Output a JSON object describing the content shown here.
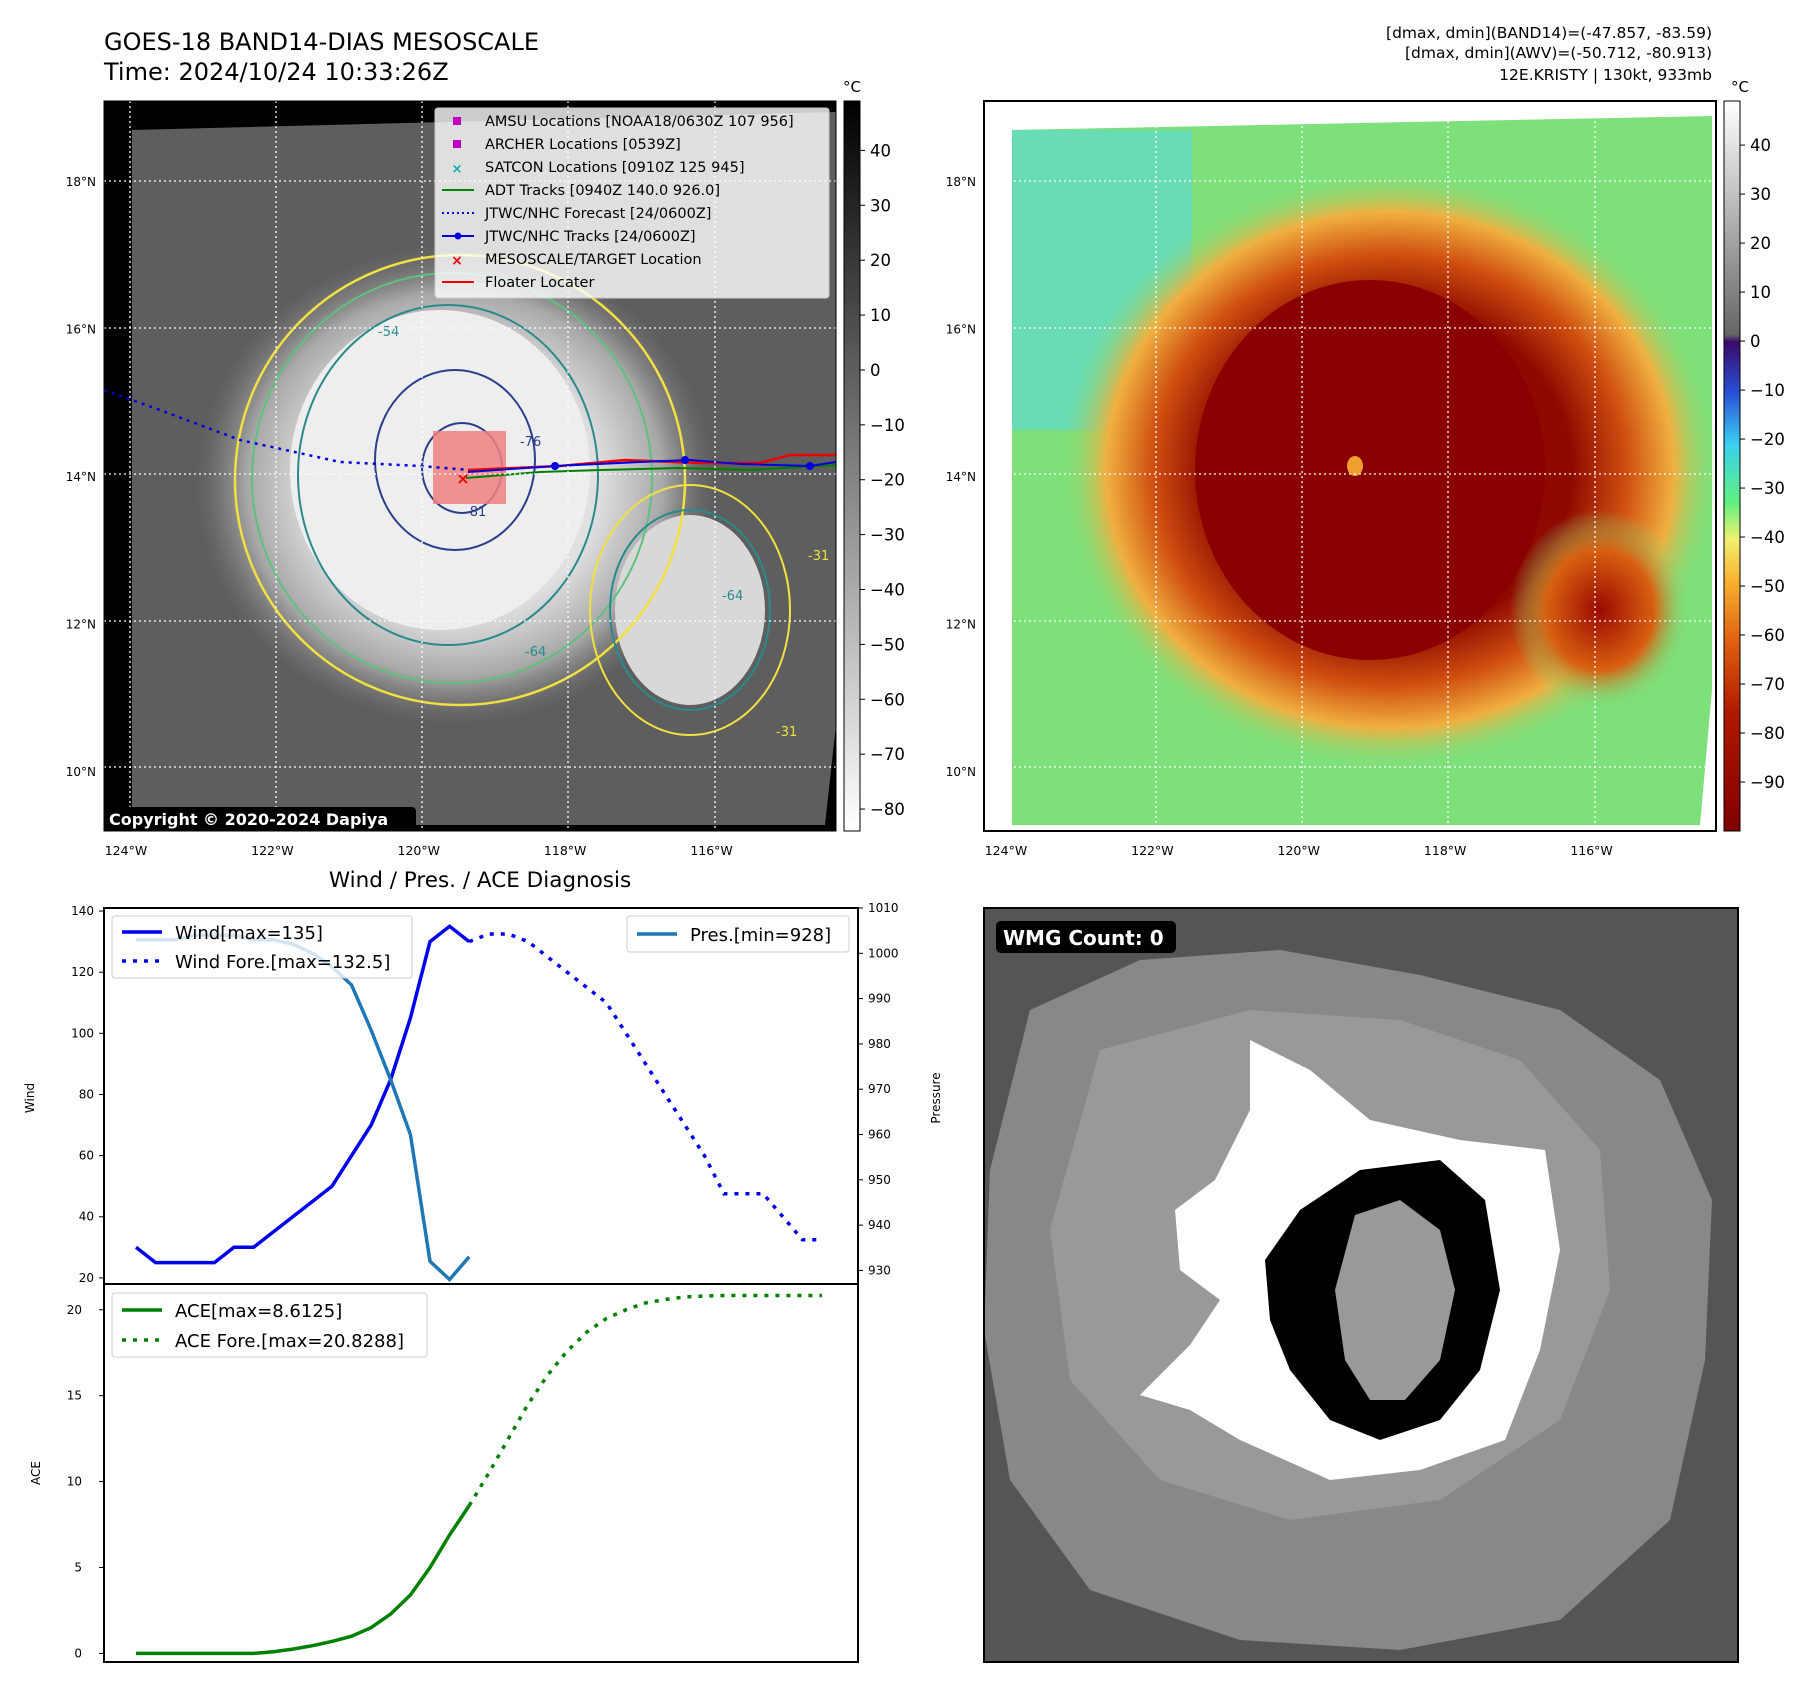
{
  "header": {
    "title_line1": "GOES-18 BAND14-DIAS MESOSCALE",
    "title_line2": "Time: 2024/10/24 10:33:26Z",
    "info_line1": "[dmax, dmin](BAND14)=(-47.857, -83.59)",
    "info_line2": "[dmax, dmin](AWV)=(-50.712, -80.913)",
    "info_line3": "12E.KRISTY | 130kt, 933mb"
  },
  "map_axes": {
    "lat_labels": [
      "18°N",
      "16°N",
      "14°N",
      "12°N",
      "10°N"
    ],
    "lat_values": [
      18,
      16,
      14,
      12,
      10
    ],
    "lon_labels": [
      "124°W",
      "122°W",
      "120°W",
      "118°W",
      "116°W"
    ],
    "lon_values": [
      -124,
      -122,
      -120,
      -118,
      -116
    ],
    "lat_range": [
      9.2,
      19.1
    ],
    "lon_range": [
      -124.3,
      -114.3
    ]
  },
  "ir_panel": {
    "copyright": "Copyright © 2020-2024 Dapiya",
    "colorbar_unit": "°C",
    "colorbar_ticks": [
      "40",
      "30",
      "20",
      "10",
      "0",
      "−10",
      "−20",
      "−30",
      "−40",
      "−50",
      "−60",
      "−70",
      "−80"
    ],
    "colorbar_values": [
      40,
      30,
      20,
      10,
      0,
      -10,
      -20,
      -30,
      -40,
      -50,
      -60,
      -70,
      -80
    ],
    "colorbar_range": [
      -84,
      49
    ],
    "contour_labels": [
      "-54",
      "-76",
      "-81",
      "-64",
      "-64",
      "-31",
      "-31"
    ],
    "legend": [
      {
        "label": "AMSU Locations [NOAA18/0630Z 107 956]",
        "color": "#c000c0",
        "marker": "square"
      },
      {
        "label": "ARCHER Locations [0539Z]",
        "color": "#c000c0",
        "marker": "square"
      },
      {
        "label": "SATCON Locations [0910Z 125 945]",
        "color": "#00b0b0",
        "marker": "x"
      },
      {
        "label": "ADT Tracks [0940Z 140.0 926.0]",
        "color": "#008000",
        "marker": "line"
      },
      {
        "label": "JTWC/NHC Forecast [24/0600Z]",
        "color": "#0000dd",
        "marker": "dotted"
      },
      {
        "label": "JTWC/NHC Tracks [24/0600Z]",
        "color": "#0000dd",
        "marker": "line-dot"
      },
      {
        "label": "MESOSCALE/TARGET Location",
        "color": "#ee0000",
        "marker": "x"
      },
      {
        "label": "Floater Locater",
        "color": "#ee0000",
        "marker": "line"
      }
    ]
  },
  "awv_panel": {
    "colorbar_unit": "°C",
    "colorbar_ticks": [
      "40",
      "30",
      "20",
      "10",
      "0",
      "−10",
      "−20",
      "−30",
      "−40",
      "−50",
      "−60",
      "−70",
      "−80",
      "−90"
    ],
    "colorbar_values": [
      40,
      30,
      20,
      10,
      0,
      -10,
      -20,
      -30,
      -40,
      -50,
      -60,
      -70,
      -80,
      -90
    ],
    "colorbar_range": [
      -100,
      49
    ]
  },
  "wmg_panel": {
    "badge": "WMG Count: 0"
  },
  "diagnosis": {
    "title": "Wind / Pres. / ACE Diagnosis",
    "wind_ylabel": "Wind",
    "pressure_ylabel": "Pressure",
    "ace_ylabel": "ACE",
    "wind_ticks": [
      "140",
      "120",
      "100",
      "80",
      "60",
      "40",
      "20"
    ],
    "pressure_ticks": [
      "1010",
      "1000",
      "990",
      "980",
      "970",
      "960",
      "950",
      "940",
      "930"
    ],
    "ace_ticks": [
      "20",
      "15",
      "10",
      "5",
      "0"
    ],
    "legend_wind": "Wind[max=135]",
    "legend_wind_fore": "Wind Fore.[max=132.5]",
    "legend_pres": "Pres.[min=928]",
    "legend_ace": "ACE[max=8.6125]",
    "legend_ace_fore": "ACE Fore.[max=20.8288]",
    "colors": {
      "wind": "#0000ee",
      "pressure": "#1f77b4",
      "ace": "#008000"
    }
  },
  "chart_data": [
    {
      "type": "line",
      "title": "Wind / Pres. / ACE Diagnosis",
      "ylabel": "Wind",
      "ylim": [
        18,
        141
      ],
      "x": [
        0,
        1,
        2,
        3,
        4,
        5,
        6,
        7,
        8,
        9,
        10,
        11,
        12,
        13,
        14,
        15,
        16,
        17,
        18,
        19,
        20,
        21,
        22,
        23,
        24,
        25,
        26,
        27,
        28,
        29,
        30,
        31,
        32,
        33,
        34,
        35
      ],
      "series": [
        {
          "name": "Wind[max=135]",
          "x": [
            0,
            1,
            2,
            3,
            4,
            5,
            6,
            7,
            8,
            9,
            10,
            11,
            12,
            13,
            14,
            15,
            16,
            17
          ],
          "values": [
            30,
            25,
            25,
            25,
            25,
            30,
            30,
            35,
            40,
            45,
            50,
            60,
            70,
            85,
            105,
            130,
            135,
            130
          ]
        },
        {
          "name": "Wind Fore.[max=132.5]",
          "x": [
            17,
            18,
            19,
            20,
            21,
            22,
            23,
            24,
            25,
            26,
            27,
            28,
            29,
            30,
            31,
            32,
            33,
            34,
            35
          ],
          "values": [
            130,
            132.5,
            132.5,
            130,
            125,
            120,
            115,
            110,
            100,
            90,
            80,
            70,
            60,
            47.5,
            47.5,
            47.5,
            40,
            32.5,
            32.5
          ]
        }
      ]
    },
    {
      "type": "line",
      "ylabel": "Pressure",
      "ylim": [
        927,
        1010
      ],
      "series": [
        {
          "name": "Pres.[min=928]",
          "x": [
            0,
            1,
            2,
            3,
            4,
            5,
            6,
            7,
            8,
            9,
            10,
            11,
            12,
            13,
            14,
            15,
            16,
            17
          ],
          "values": [
            1003,
            1003,
            1003,
            1004,
            1004,
            1004,
            1003,
            1003,
            1002,
            1000,
            997,
            993,
            983,
            972,
            960,
            932,
            928,
            933
          ]
        }
      ]
    },
    {
      "type": "line",
      "ylabel": "ACE",
      "ylim": [
        -0.5,
        21.5
      ],
      "series": [
        {
          "name": "ACE[max=8.6125]",
          "x": [
            0,
            1,
            2,
            3,
            4,
            5,
            6,
            7,
            8,
            9,
            10,
            11,
            12,
            13,
            14,
            15,
            16,
            17
          ],
          "values": [
            0,
            0,
            0,
            0,
            0,
            0,
            0,
            0.1,
            0.25,
            0.45,
            0.7,
            1.0,
            1.5,
            2.3,
            3.4,
            5.0,
            6.9,
            8.6
          ]
        },
        {
          "name": "ACE Fore.[max=20.8288]",
          "x": [
            17,
            18,
            19,
            20,
            21,
            22,
            23,
            24,
            25,
            26,
            27,
            28,
            29,
            30,
            31,
            32,
            33,
            34,
            35
          ],
          "values": [
            8.6,
            10.5,
            12.5,
            14.5,
            16.2,
            17.6,
            18.7,
            19.5,
            20.0,
            20.4,
            20.6,
            20.75,
            20.8,
            20.83,
            20.83,
            20.83,
            20.83,
            20.83,
            20.83
          ]
        }
      ]
    }
  ]
}
